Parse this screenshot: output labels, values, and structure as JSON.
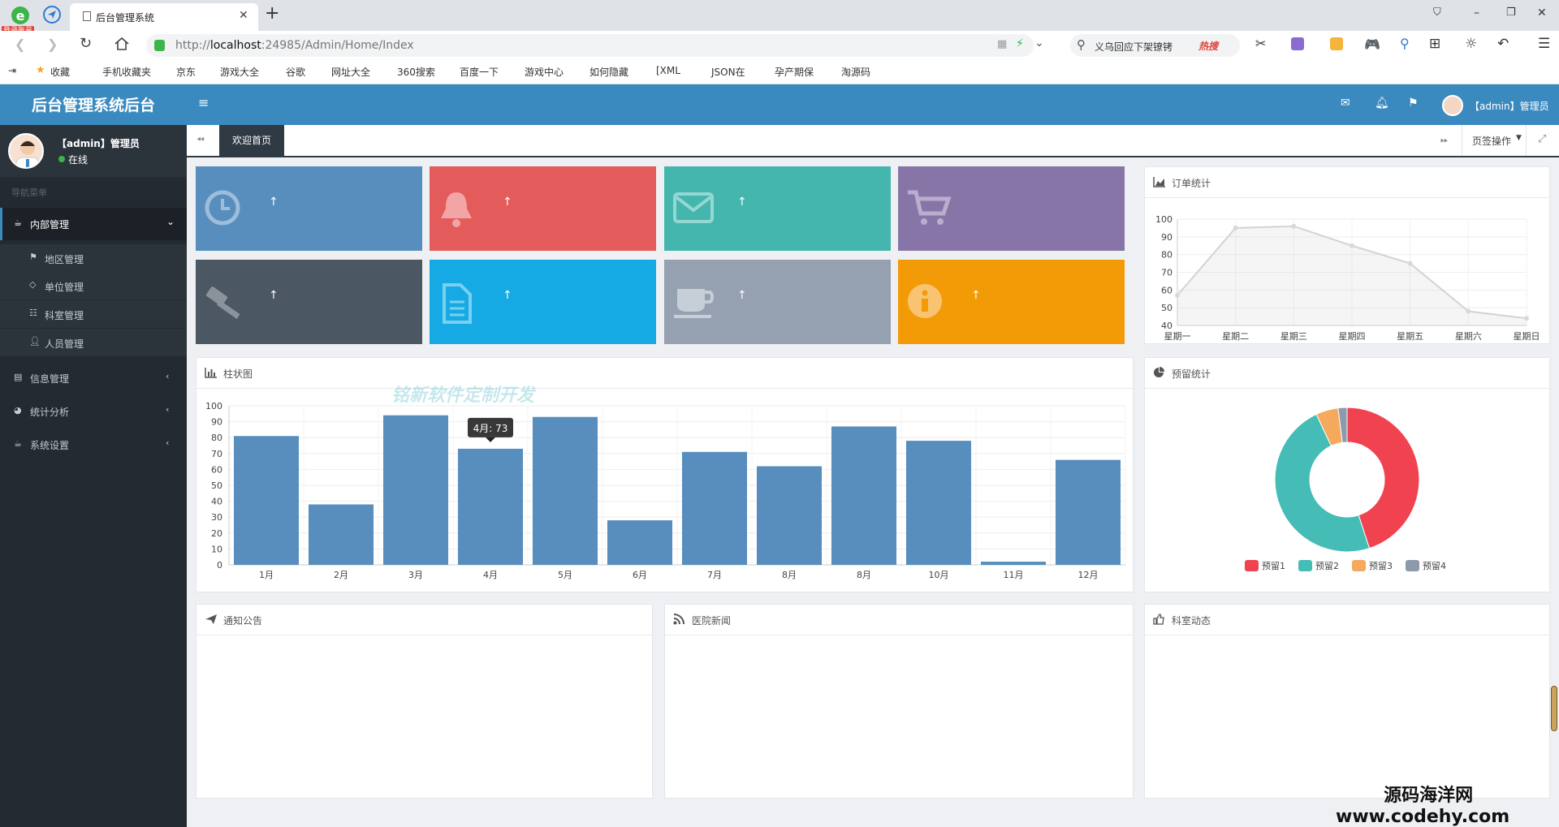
{
  "browser": {
    "tab_title": "后台管理系统",
    "new_tab": "+",
    "url_prefix": "http://",
    "url_host": "localhost",
    "url_rest": ":24985/Admin/Home/Index",
    "search_text": "义乌回应下架镣铐",
    "hot_label": "热搜",
    "login_badge": "登录账号",
    "bookmarks": [
      "收藏",
      "手机收藏夹",
      "京东",
      "游戏大全",
      "谷歌",
      "网址大全",
      "360搜索",
      "百度一下",
      "游戏中心",
      "如何隐藏",
      "[XML",
      "JSON在",
      "孕产期保",
      "淘源码"
    ]
  },
  "header": {
    "app_title": "后台管理系统后台",
    "menu_toggle": "≡",
    "user_label": "【admin】管理员"
  },
  "sidebar": {
    "user_name": "【admin】管理员",
    "status": "在线",
    "nav_heading": "导航菜单",
    "menus": [
      {
        "label": "内部管理",
        "expanded": true,
        "children": [
          "地区管理",
          "单位管理",
          "科室管理",
          "人员管理"
        ]
      },
      {
        "label": "信息管理",
        "expanded": false
      },
      {
        "label": "统计分析",
        "expanded": false
      },
      {
        "label": "系统设置",
        "expanded": false
      }
    ]
  },
  "tabstrip": {
    "active_tab": "欢迎首页",
    "page_ops": "页签操作"
  },
  "tiles": [
    {
      "icon": "clock-icon",
      "color": "#578ebe",
      "arrow": "↑"
    },
    {
      "icon": "bell-icon",
      "color": "#e35b5a",
      "arrow": "↑"
    },
    {
      "icon": "envelope-icon",
      "color": "#44b6ae",
      "arrow": "↑"
    },
    {
      "icon": "cart-icon",
      "color": "#8775a7",
      "arrow": ""
    },
    {
      "icon": "gavel-icon",
      "color": "#4b5762",
      "arrow": "↑"
    },
    {
      "icon": "file-icon",
      "color": "#16aae4",
      "arrow": "↑"
    },
    {
      "icon": "coffee-icon",
      "color": "#95a1b0",
      "arrow": "↑"
    },
    {
      "icon": "info-icon",
      "color": "#f39a07",
      "arrow": "↑"
    }
  ],
  "panels": {
    "orders_title": "订单统计",
    "bar_title": "柱状图",
    "reserve_title": "预留统计",
    "notice_title": "通知公告",
    "news_title": "医院新闻",
    "dept_title": "科室动态",
    "overlay_text": "铭新软件定制开发"
  },
  "chart_data": [
    {
      "type": "area",
      "categories": [
        "星期一",
        "星期二",
        "星期三",
        "星期四",
        "星期五",
        "星期六",
        "星期日"
      ],
      "values": [
        57,
        95,
        96,
        85,
        75,
        48,
        44
      ],
      "ylim": [
        40,
        100
      ],
      "yticks": [
        100,
        90,
        80,
        70,
        60,
        50,
        40
      ],
      "grid": true
    },
    {
      "type": "bar",
      "categories": [
        "1月",
        "2月",
        "3月",
        "4月",
        "5月",
        "6月",
        "7月",
        "8月",
        "8月",
        "10月",
        "11月",
        "12月"
      ],
      "values": [
        81,
        38,
        94,
        73,
        93,
        28,
        71,
        62,
        87,
        78,
        2,
        66
      ],
      "ylim": [
        0,
        100
      ],
      "yticks": [
        100,
        90,
        80,
        70,
        60,
        50,
        40,
        30,
        20,
        10,
        0
      ],
      "color": "#578ebe",
      "tooltip": "4月: 73",
      "grid": true
    },
    {
      "type": "pie",
      "series": [
        {
          "name": "预留1",
          "value": 45,
          "color": "#f1434f"
        },
        {
          "name": "预留2",
          "value": 48,
          "color": "#45bcb6"
        },
        {
          "name": "预留3",
          "value": 5,
          "color": "#f5a95c"
        },
        {
          "name": "预留4",
          "value": 2,
          "color": "#8d9aad"
        }
      ],
      "legend": "bottom"
    }
  ],
  "watermark": {
    "line1": "源码海洋网",
    "line2": "www.codehy.com"
  }
}
